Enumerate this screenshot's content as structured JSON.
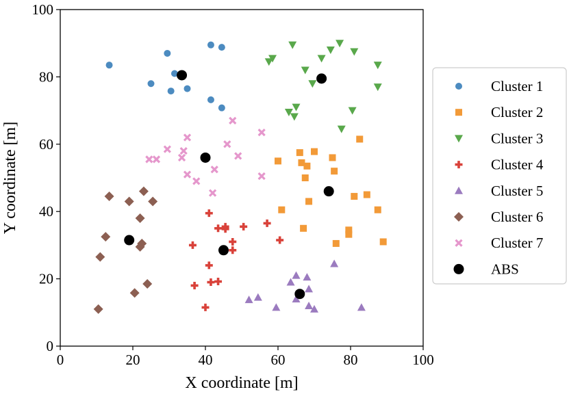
{
  "chart_data": {
    "type": "scatter",
    "title": "",
    "xlabel": "X coordinate [m]",
    "ylabel": "Y coordinate [m]",
    "xlim": [
      0,
      100
    ],
    "ylim": [
      0,
      100
    ],
    "xticks": [
      "0",
      "20",
      "40",
      "60",
      "80",
      "100"
    ],
    "yticks": [
      "0",
      "20",
      "40",
      "60",
      "80",
      "100"
    ],
    "grid": false,
    "legend_position": "right",
    "series": [
      {
        "name": "Cluster 1",
        "marker": "circle",
        "color": "#4C8BC0",
        "points": [
          [
            13.5,
            83.5
          ],
          [
            29.5,
            87
          ],
          [
            41.5,
            89.5
          ],
          [
            44.5,
            88.8
          ],
          [
            25,
            78
          ],
          [
            31.5,
            81
          ],
          [
            35,
            76.5
          ],
          [
            30.5,
            75.8
          ],
          [
            41.5,
            73.2
          ],
          [
            44.5,
            70.8
          ]
        ]
      },
      {
        "name": "Cluster 2",
        "marker": "square",
        "color": "#F29A38",
        "points": [
          [
            60,
            55
          ],
          [
            66,
            57.5
          ],
          [
            70,
            57.8
          ],
          [
            66.5,
            54.5
          ],
          [
            68,
            53.5
          ],
          [
            75,
            56
          ],
          [
            75.5,
            52
          ],
          [
            82.5,
            61.5
          ],
          [
            67.5,
            50
          ],
          [
            61,
            40.5
          ],
          [
            68.5,
            43
          ],
          [
            81,
            44.5
          ],
          [
            84.5,
            45
          ],
          [
            87.5,
            40.5
          ],
          [
            67,
            35
          ],
          [
            79.5,
            34.5
          ],
          [
            79.5,
            33.2
          ],
          [
            76,
            30.5
          ],
          [
            89,
            31
          ]
        ]
      },
      {
        "name": "Cluster 3",
        "marker": "triangle-down",
        "color": "#59A84B",
        "points": [
          [
            64,
            89.5
          ],
          [
            77,
            90
          ],
          [
            74.5,
            88
          ],
          [
            81,
            87.5
          ],
          [
            58.5,
            85.5
          ],
          [
            57.5,
            84.5
          ],
          [
            72,
            85.5
          ],
          [
            87.5,
            83.5
          ],
          [
            67.5,
            82
          ],
          [
            69.5,
            78
          ],
          [
            87.5,
            77
          ],
          [
            63,
            69.5
          ],
          [
            65,
            71
          ],
          [
            64.5,
            68.2
          ],
          [
            80.5,
            70
          ],
          [
            77.5,
            64.5
          ]
        ]
      },
      {
        "name": "Cluster 4",
        "marker": "plus",
        "color": "#D9423A",
        "points": [
          [
            41,
            39.5
          ],
          [
            43.5,
            35
          ],
          [
            45.5,
            35.5
          ],
          [
            45.5,
            34.8
          ],
          [
            50.5,
            35.5
          ],
          [
            57,
            36.5
          ],
          [
            60.5,
            31.5
          ],
          [
            47.5,
            31
          ],
          [
            47.5,
            28.5
          ],
          [
            36.5,
            30
          ],
          [
            41,
            24
          ],
          [
            37,
            18
          ],
          [
            41.5,
            19
          ],
          [
            43.5,
            19.2
          ],
          [
            40,
            11.5
          ]
        ]
      },
      {
        "name": "Cluster 5",
        "marker": "triangle",
        "color": "#9B7BBF",
        "points": [
          [
            75.5,
            24.5
          ],
          [
            65,
            21
          ],
          [
            68,
            20.5
          ],
          [
            63.5,
            19
          ],
          [
            68.5,
            17
          ],
          [
            52,
            13.8
          ],
          [
            54.5,
            14.5
          ],
          [
            65,
            14
          ],
          [
            68.5,
            12
          ],
          [
            70,
            11
          ],
          [
            59.5,
            11.5
          ],
          [
            83,
            11.5
          ]
        ]
      },
      {
        "name": "Cluster 6",
        "marker": "diamond",
        "color": "#8C5F52",
        "points": [
          [
            13.5,
            44.5
          ],
          [
            19,
            43
          ],
          [
            23,
            46
          ],
          [
            25.5,
            43
          ],
          [
            22,
            38
          ],
          [
            12.5,
            32.5
          ],
          [
            22,
            29.5
          ],
          [
            22.5,
            30.5
          ],
          [
            11,
            26.5
          ],
          [
            24,
            18.5
          ],
          [
            20.5,
            15.8
          ],
          [
            10.5,
            11
          ]
        ]
      },
      {
        "name": "Cluster 7",
        "marker": "x",
        "color": "#E597CC",
        "points": [
          [
            47.5,
            67
          ],
          [
            55.5,
            63.5
          ],
          [
            35,
            62
          ],
          [
            29.5,
            58.5
          ],
          [
            34,
            58
          ],
          [
            24.5,
            55.5
          ],
          [
            26.5,
            55.5
          ],
          [
            33.5,
            56
          ],
          [
            46,
            60
          ],
          [
            49,
            56.5
          ],
          [
            42.5,
            52.5
          ],
          [
            35,
            51
          ],
          [
            37.5,
            49
          ],
          [
            55.5,
            50.5
          ],
          [
            42,
            45.5
          ]
        ]
      },
      {
        "name": "ABS",
        "marker": "circle-large",
        "color": "#000000",
        "points": [
          [
            33.5,
            80.5
          ],
          [
            72,
            79.5
          ],
          [
            40,
            56
          ],
          [
            74,
            46
          ],
          [
            19,
            31.5
          ],
          [
            45,
            28.5
          ],
          [
            66,
            15.5
          ]
        ]
      }
    ]
  }
}
